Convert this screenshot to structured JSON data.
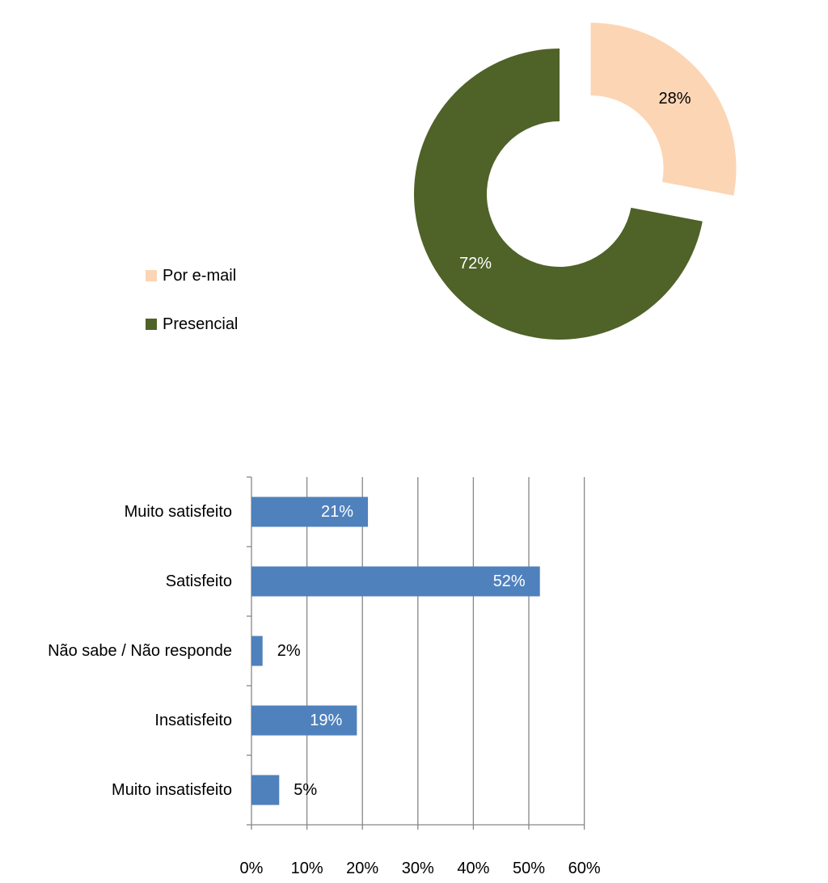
{
  "chart_data": [
    {
      "type": "pie",
      "variant": "doughnut",
      "title": "",
      "categories": [
        "Por e-mail",
        "Presencial"
      ],
      "values": [
        28,
        72
      ],
      "labels": [
        "28%",
        "72%"
      ],
      "colors": [
        "#FCD5B5",
        "#4F6228"
      ],
      "label_colors": [
        "#000000",
        "#FFFFFF"
      ],
      "exploded": [
        true,
        false
      ],
      "legend": {
        "position": "left",
        "entries": [
          "Por e-mail",
          "Presencial"
        ]
      }
    },
    {
      "type": "bar",
      "orientation": "horizontal",
      "title": "",
      "xlabel": "",
      "ylabel": "",
      "categories": [
        "Muito satisfeito",
        "Satisfeito",
        "Não sabe / Não responde",
        "Insatisfeito",
        "Muito insatisfeito"
      ],
      "values": [
        21,
        52,
        2,
        19,
        5
      ],
      "data_labels": [
        "21%",
        "52%",
        "2%",
        "19%",
        "5%"
      ],
      "xlim": [
        0,
        60
      ],
      "ticks": [
        0,
        10,
        20,
        30,
        40,
        50,
        60
      ],
      "tick_labels": [
        "0%",
        "10%",
        "20%",
        "30%",
        "40%",
        "50%",
        "60%"
      ],
      "grid": true,
      "bar_color": "#4F81BD",
      "legend": "none"
    }
  ]
}
